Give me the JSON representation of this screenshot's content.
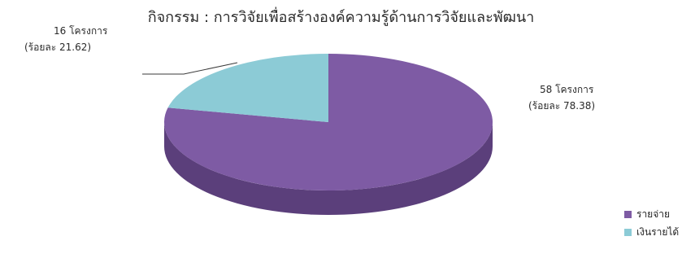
{
  "chart_data": {
    "type": "pie",
    "title": "กิจกรรม : การวิจัยเพื่อสร้างองค์ความรู้ด้านการวิจัยและพัฒนา",
    "series": [
      {
        "name": "รายจ่าย",
        "count": 58,
        "count_label": "58 โครงการ",
        "percent": 78.38,
        "percent_label": "(ร้อยละ 78.38)",
        "color": "#7e5ba4",
        "side_color": "#5b3f7b"
      },
      {
        "name": "เงินรายได้",
        "count": 16,
        "count_label": "16 โครงการ",
        "percent": 21.62,
        "percent_label": "(ร้อยละ 21.62)",
        "color": "#8ccbd6",
        "side_color": "#5c9aa6"
      }
    ],
    "legend_position": "bottom-right"
  }
}
